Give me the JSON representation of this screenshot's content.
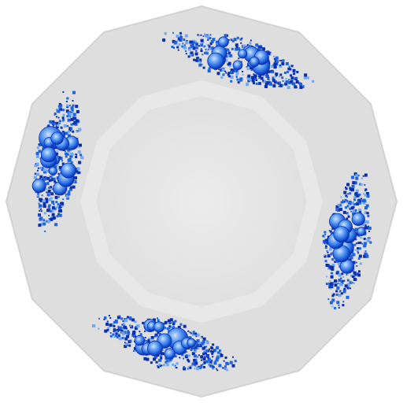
{
  "scene": {
    "subject": "dodecagonal-porcelain-plate",
    "colors": {
      "background": "#ffffff",
      "plate_rim": "#dedede",
      "plate_rim_edge": "#d2d2d2",
      "plate_ledge": "#e8e8e8",
      "plate_well": "#e0e0e0",
      "plate_well_center": "#ececec",
      "glaze_dark": "#0a2fae",
      "glaze_mid": "#1e63e0",
      "glaze_light": "#6fa8f5",
      "glaze_highlight": "#cfe3ff"
    },
    "decoration_motif": "blue-glaze-floral-sprays",
    "decoration_count": 4
  }
}
